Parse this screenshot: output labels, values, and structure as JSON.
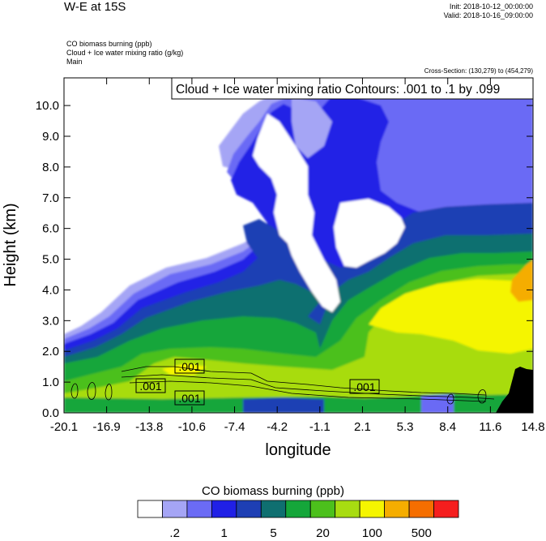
{
  "header": {
    "title": "W-E at 15S",
    "init": "Init: 2018-10-12_00:00:00",
    "valid": "Valid: 2018-10-16_09:00:00",
    "variables": [
      "CO biomass burning   (ppb)",
      "Cloud + Ice water mixing ratio   (g/kg)",
      "Main"
    ],
    "cross_section": "Cross-Section: (130,279) to (454,279)"
  },
  "chart_data": {
    "type": "heatmap",
    "title": "W-E at 15S",
    "xlabel": "longitude",
    "ylabel": "Height (km)",
    "xlim": [
      -20.1,
      14.8
    ],
    "ylim": [
      0.0,
      10.9
    ],
    "x_ticks": [
      "-20.1",
      "-16.9",
      "-13.8",
      "-10.6",
      "-7.4",
      "-4.2",
      "-1.1",
      "2.1",
      "5.3",
      "8.4",
      "11.6",
      "14.8"
    ],
    "y_ticks": [
      "0.0",
      "1.0",
      "2.0",
      "3.0",
      "4.0",
      "5.0",
      "6.0",
      "7.0",
      "8.0",
      "9.0",
      "10.0"
    ],
    "y_tick_values": [
      0,
      1,
      2,
      3,
      4,
      5,
      6,
      7,
      8,
      9,
      10
    ],
    "filled_field": "CO biomass burning (ppb)",
    "colorbar": {
      "title": "CO biomass burning  (ppb)",
      "colors": [
        "#ffffff",
        "#a5a5f5",
        "#6b6bf5",
        "#2020e6",
        "#1e3fb4",
        "#0f6f70",
        "#15a63a",
        "#4cc01c",
        "#a8dc11",
        "#f5f500",
        "#f5ad00",
        "#f56e00",
        "#f51e1e"
      ],
      "labels": [
        ".2",
        "1",
        "5",
        "20",
        "100",
        "500"
      ]
    },
    "contours": {
      "field": "Cloud + Ice water mixing ratio",
      "title": "Cloud + Ice water mixing ratio Contours: .001 to .1 by .099",
      "labels": [
        ".001",
        ".001",
        ".001",
        ".001"
      ]
    }
  }
}
